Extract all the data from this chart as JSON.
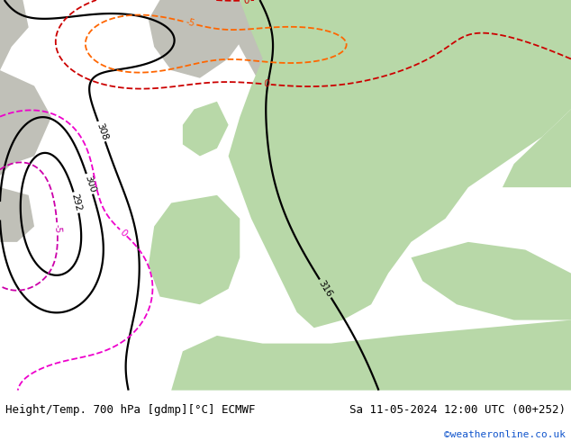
{
  "title_left": "Height/Temp. 700 hPa [gdmp][°C] ECMWF",
  "title_right": "Sa 11-05-2024 12:00 UTC (00+252)",
  "copyright": "©weatheronline.co.uk",
  "fig_width": 6.34,
  "fig_height": 4.9,
  "dpi": 100,
  "bg_color": "#ffffff",
  "land_green": "#b8d8a8",
  "land_gray": "#c0c0b8",
  "sea_color": "#e8eef0",
  "title_fontsize": 9,
  "copyright_color": "#1155cc",
  "copyright_fontsize": 8
}
